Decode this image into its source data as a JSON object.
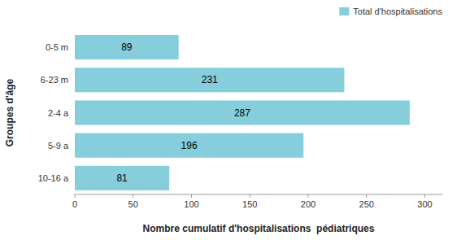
{
  "chart_data": {
    "type": "bar",
    "orientation": "horizontal",
    "categories": [
      "0-5 m",
      "6-23 m",
      "2-4 a",
      "5-9 a",
      "10-16 a"
    ],
    "series": [
      {
        "name": "Total d'hospitalisations",
        "color": "#87CEDC",
        "values": [
          89,
          231,
          287,
          196,
          81
        ]
      }
    ],
    "xlabel": "Nombre cumulatif d'hospitalisations  pédiatriques",
    "ylabel": "Groupes d'âge",
    "xlim": [
      0,
      315
    ],
    "xticks": [
      0,
      50,
      100,
      150,
      200,
      250,
      300
    ],
    "data_labels": true,
    "legend": "upper right",
    "grid": false
  }
}
